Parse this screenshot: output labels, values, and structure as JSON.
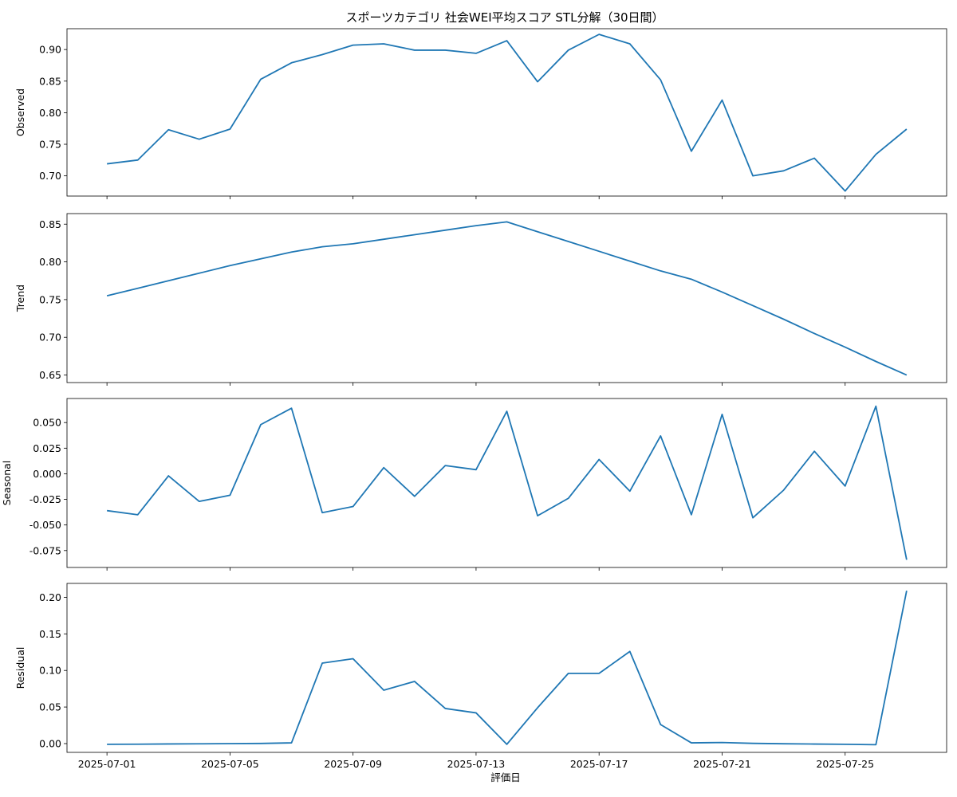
{
  "chart_data": {
    "type": "line",
    "title": "スポーツカテゴリ 社会WEI平均スコア STL分解（30日間）",
    "xlabel": "評価日",
    "x_dates": [
      "2025-07-01",
      "2025-07-02",
      "2025-07-03",
      "2025-07-04",
      "2025-07-05",
      "2025-07-06",
      "2025-07-07",
      "2025-07-08",
      "2025-07-09",
      "2025-07-10",
      "2025-07-11",
      "2025-07-12",
      "2025-07-13",
      "2025-07-14",
      "2025-07-15",
      "2025-07-16",
      "2025-07-17",
      "2025-07-18",
      "2025-07-19",
      "2025-07-20",
      "2025-07-21",
      "2025-07-22",
      "2025-07-23",
      "2025-07-24",
      "2025-07-25",
      "2025-07-26",
      "2025-07-27"
    ],
    "x_ticks": [
      "2025-07-01",
      "2025-07-05",
      "2025-07-09",
      "2025-07-13",
      "2025-07-17",
      "2025-07-21",
      "2025-07-25"
    ],
    "panels": [
      {
        "name": "Observed",
        "ylabel": "Observed",
        "ylim": [
          0.668,
          0.933
        ],
        "yticks": [
          0.7,
          0.75,
          0.8,
          0.85,
          0.9
        ],
        "tick_decimals": 2,
        "values": [
          0.719,
          0.725,
          0.773,
          0.758,
          0.774,
          0.853,
          0.879,
          0.892,
          0.907,
          0.909,
          0.899,
          0.899,
          0.894,
          0.914,
          0.849,
          0.899,
          0.924,
          0.909,
          0.852,
          0.739,
          0.82,
          0.7,
          0.708,
          0.728,
          0.676,
          0.734,
          0.774
        ]
      },
      {
        "name": "Trend",
        "ylabel": "Trend",
        "ylim": [
          0.64,
          0.864
        ],
        "yticks": [
          0.65,
          0.7,
          0.75,
          0.8,
          0.85
        ],
        "tick_decimals": 2,
        "values": [
          0.755,
          0.765,
          0.775,
          0.785,
          0.795,
          0.804,
          0.813,
          0.82,
          0.824,
          0.83,
          0.836,
          0.842,
          0.848,
          0.853,
          0.84,
          0.827,
          0.814,
          0.801,
          0.788,
          0.777,
          0.76,
          0.742,
          0.724,
          0.705,
          0.687,
          0.668,
          0.65
        ]
      },
      {
        "name": "Seasonal",
        "ylabel": "Seasonal",
        "ylim": [
          -0.0915,
          0.0735
        ],
        "yticks": [
          -0.075,
          -0.05,
          -0.025,
          0.0,
          0.025,
          0.05
        ],
        "tick_decimals": 3,
        "values": [
          -0.036,
          -0.04,
          -0.002,
          -0.027,
          -0.021,
          0.048,
          0.064,
          -0.038,
          -0.032,
          0.006,
          -0.022,
          0.008,
          0.004,
          0.061,
          -0.041,
          -0.024,
          0.014,
          -0.017,
          0.037,
          -0.04,
          0.058,
          -0.043,
          -0.016,
          0.022,
          -0.012,
          0.066,
          -0.084
        ]
      },
      {
        "name": "Residual",
        "ylabel": "Residual",
        "ylim": [
          -0.012,
          0.219
        ],
        "yticks": [
          0.0,
          0.05,
          0.1,
          0.15,
          0.2
        ],
        "tick_decimals": 2,
        "values": [
          -0.001,
          -0.0008,
          -0.0005,
          -0.0003,
          0.0,
          0.0002,
          0.001,
          0.11,
          0.116,
          0.073,
          0.085,
          0.048,
          0.042,
          -0.001,
          0.049,
          0.096,
          0.096,
          0.126,
          0.026,
          0.001,
          0.0015,
          0.0003,
          -0.0002,
          -0.0006,
          -0.001,
          -0.0015,
          0.209
        ]
      }
    ],
    "line_color": "#1f77b4",
    "grid": false,
    "legend": "none"
  }
}
